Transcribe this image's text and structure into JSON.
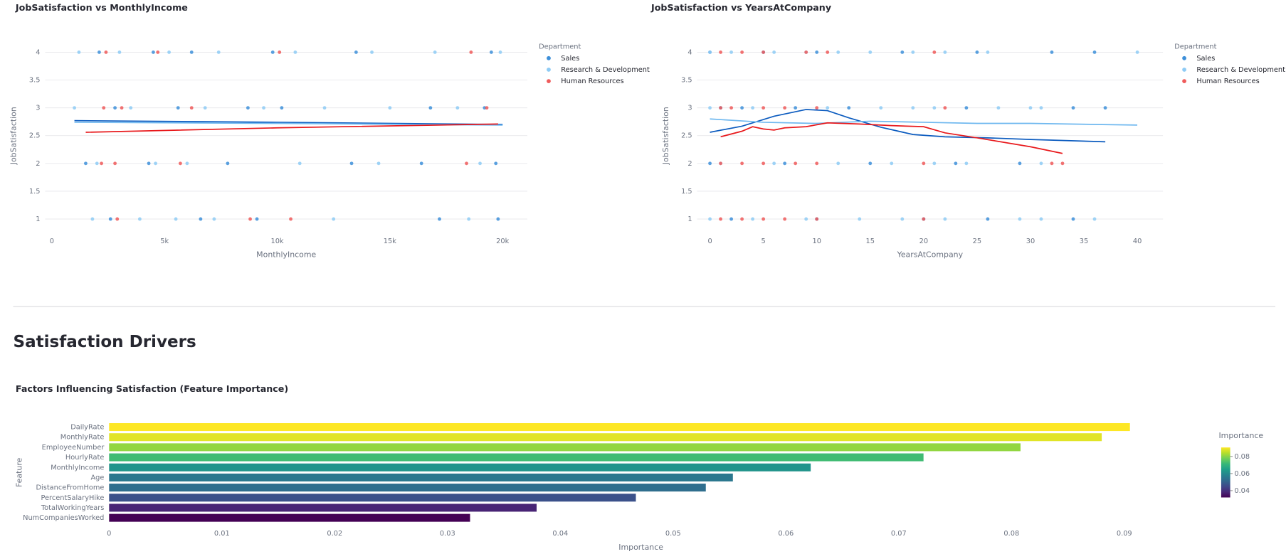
{
  "heading": "Satisfaction Drivers",
  "chart_data": [
    {
      "type": "scatter",
      "title": "JobSatisfaction vs MonthlyIncome",
      "x_label": "MonthlyIncome",
      "y_label": "JobSatisfaction",
      "legend_title": "Department",
      "xlim": [
        -300,
        21100
      ],
      "ylim": [
        0.65,
        4.35
      ],
      "xticks": [
        0,
        {
          "value": 5000,
          "label": "5k"
        },
        {
          "value": 10000,
          "label": "10k"
        },
        {
          "value": 15000,
          "label": "15k"
        },
        {
          "value": 20000,
          "label": "20k"
        }
      ],
      "yticks": [
        1,
        1.5,
        2,
        2.5,
        3,
        3.5,
        4
      ],
      "grid": true,
      "series": [
        {
          "name": "Sales",
          "color": "#3d8fd9",
          "x": [
            2100,
            4500,
            6200,
            9800,
            13500,
            19500,
            2800,
            5600,
            8700,
            10200,
            16800,
            19200,
            1500,
            4300,
            7800,
            13300,
            16400,
            19700,
            2600,
            6600,
            9100,
            17200,
            19800
          ],
          "values": [
            4,
            4,
            4,
            4,
            4,
            4,
            3,
            3,
            3,
            3,
            3,
            3,
            2,
            2,
            2,
            2,
            2,
            2,
            1,
            1,
            1,
            1,
            1
          ]
        },
        {
          "name": "Research & Development",
          "color": "#8ecbf5",
          "x": [
            1200,
            3000,
            5200,
            7400,
            10800,
            14200,
            17000,
            19900,
            1000,
            3500,
            6800,
            9400,
            12100,
            15000,
            18000,
            2000,
            4600,
            6000,
            11000,
            14500,
            19000,
            1800,
            3900,
            5500,
            7200,
            12500,
            18500
          ],
          "values": [
            4,
            4,
            4,
            4,
            4,
            4,
            4,
            4,
            3,
            3,
            3,
            3,
            3,
            3,
            3,
            2,
            2,
            2,
            2,
            2,
            2,
            1,
            1,
            1,
            1,
            1,
            1
          ]
        },
        {
          "name": "Human Resources",
          "color": "#ef5b5b",
          "x": [
            2400,
            4700,
            10100,
            18600,
            2300,
            3100,
            6200,
            19300,
            2200,
            2800,
            5700,
            18400,
            2900,
            8800,
            10600
          ],
          "values": [
            4,
            4,
            4,
            4,
            3,
            3,
            3,
            3,
            2,
            2,
            2,
            2,
            1,
            1,
            1
          ]
        }
      ],
      "trendlines": [
        {
          "color": "#0b5bbf",
          "x": [
            1000,
            10000,
            20000
          ],
          "values": [
            2.77,
            2.74,
            2.7
          ]
        },
        {
          "color": "#6fb8ef",
          "x": [
            1000,
            10000,
            20000
          ],
          "values": [
            2.74,
            2.72,
            2.69
          ]
        },
        {
          "color": "#e8191c",
          "x": [
            1500,
            10000,
            19800
          ],
          "values": [
            2.56,
            2.64,
            2.71
          ]
        }
      ]
    },
    {
      "type": "scatter",
      "title": "JobSatisfaction vs YearsAtCompany",
      "x_label": "YearsAtCompany",
      "y_label": "JobSatisfaction",
      "legend_title": "Department",
      "xlim": [
        -1.2,
        42.4
      ],
      "ylim": [
        0.65,
        4.35
      ],
      "xticks": [
        0,
        5,
        10,
        15,
        20,
        25,
        30,
        35,
        40
      ],
      "yticks": [
        1,
        1.5,
        2,
        2.5,
        3,
        3.5,
        4
      ],
      "grid": true,
      "series": [
        {
          "name": "Sales",
          "color": "#3d8fd9",
          "x": [
            0,
            5,
            10,
            18,
            25,
            32,
            36,
            1,
            3,
            8,
            13,
            24,
            34,
            37,
            0,
            7,
            15,
            23,
            29,
            2,
            10,
            20,
            26,
            34
          ],
          "values": [
            4,
            4,
            4,
            4,
            4,
            4,
            4,
            3,
            3,
            3,
            3,
            3,
            3,
            3,
            2,
            2,
            2,
            2,
            2,
            1,
            1,
            1,
            1,
            1
          ]
        },
        {
          "name": "Research & Development",
          "color": "#8ecbf5",
          "x": [
            0,
            2,
            6,
            9,
            12,
            15,
            19,
            22,
            26,
            40,
            0,
            4,
            11,
            16,
            19,
            21,
            27,
            30,
            31,
            1,
            6,
            12,
            17,
            21,
            24,
            31,
            0,
            4,
            9,
            14,
            18,
            22,
            29,
            31,
            36
          ],
          "values": [
            4,
            4,
            4,
            4,
            4,
            4,
            4,
            4,
            4,
            4,
            3,
            3,
            3,
            3,
            3,
            3,
            3,
            3,
            3,
            2,
            2,
            2,
            2,
            2,
            2,
            2,
            1,
            1,
            1,
            1,
            1,
            1,
            1,
            1,
            1
          ]
        },
        {
          "name": "Human Resources",
          "color": "#ef5b5b",
          "x": [
            1,
            3,
            5,
            9,
            11,
            21,
            1,
            2,
            5,
            7,
            10,
            22,
            1,
            3,
            5,
            8,
            10,
            20,
            32,
            33,
            1,
            3,
            5,
            7,
            10,
            20
          ],
          "values": [
            4,
            4,
            4,
            4,
            4,
            4,
            3,
            3,
            3,
            3,
            3,
            3,
            2,
            2,
            2,
            2,
            2,
            2,
            2,
            2,
            1,
            1,
            1,
            1,
            1,
            1
          ]
        }
      ],
      "trendlines": [
        {
          "color": "#0b5bbf",
          "x": [
            0,
            3,
            6,
            9,
            11,
            13,
            16,
            19,
            22,
            26,
            30,
            37
          ],
          "values": [
            2.56,
            2.67,
            2.85,
            2.97,
            2.95,
            2.82,
            2.65,
            2.52,
            2.48,
            2.46,
            2.43,
            2.39
          ]
        },
        {
          "color": "#6fb8ef",
          "x": [
            0,
            5,
            10,
            15,
            20,
            25,
            30,
            40
          ],
          "values": [
            2.8,
            2.74,
            2.72,
            2.76,
            2.74,
            2.72,
            2.72,
            2.69
          ]
        },
        {
          "color": "#e8191c",
          "x": [
            1,
            3,
            4,
            5,
            6,
            7,
            9,
            11,
            14,
            17,
            20,
            22,
            25,
            30,
            33
          ],
          "values": [
            2.48,
            2.58,
            2.66,
            2.62,
            2.6,
            2.64,
            2.66,
            2.73,
            2.71,
            2.68,
            2.66,
            2.55,
            2.46,
            2.3,
            2.18
          ]
        }
      ]
    },
    {
      "type": "hbar",
      "title": "Factors Influencing Satisfaction (Feature Importance)",
      "x_label": "Importance",
      "y_label": "Feature",
      "categories": [
        "DailyRate",
        "MonthlyRate",
        "EmployeeNumber",
        "HourlyRate",
        "MonthlyIncome",
        "Age",
        "DistanceFromHome",
        "PercentSalaryHike",
        "TotalWorkingYears",
        "NumCompaniesWorked"
      ],
      "values": [
        0.0905,
        0.088,
        0.0808,
        0.0722,
        0.0622,
        0.0553,
        0.0529,
        0.0467,
        0.0379,
        0.032
      ],
      "xlim": [
        0,
        0.0943
      ],
      "xticks": [
        0,
        0.01,
        0.02,
        0.03,
        0.04,
        0.05,
        0.06,
        0.07,
        0.08,
        0.09
      ],
      "colorbar": {
        "title": "Importance",
        "range": [
          0.032,
          0.0905
        ],
        "ticks": [
          0.04,
          0.06,
          0.08
        ],
        "colorscale": [
          "#440154",
          "#482878",
          "#3e4989",
          "#31688e",
          "#26828e",
          "#1f9e89",
          "#35b779",
          "#6ece58",
          "#b5de2b",
          "#fde725"
        ]
      }
    }
  ]
}
